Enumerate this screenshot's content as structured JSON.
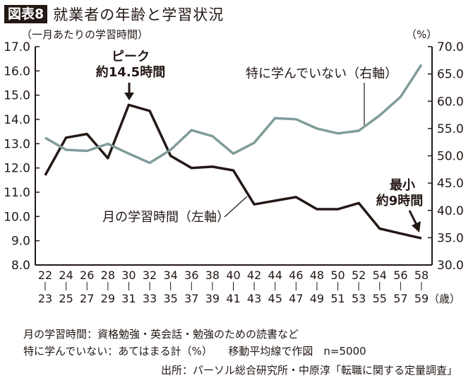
{
  "header": {
    "badge": "図表8",
    "title": "就業者の年齢と学習状況"
  },
  "chart_data": {
    "type": "line",
    "title": "就業者の年齢と学習状況",
    "ylabel_left": "（一月あたりの学習時間）",
    "ylabel_right": "（%）",
    "xunit": "（歳）",
    "categories_top": [
      "22",
      "24",
      "26",
      "28",
      "30",
      "32",
      "34",
      "36",
      "38",
      "40",
      "42",
      "44",
      "46",
      "48",
      "50",
      "52",
      "54",
      "56",
      "58"
    ],
    "categories_bottom": [
      "23",
      "25",
      "27",
      "29",
      "31",
      "33",
      "35",
      "37",
      "39",
      "41",
      "43",
      "45",
      "47",
      "49",
      "51",
      "53",
      "55",
      "57",
      "59"
    ],
    "ylim_left": [
      8,
      17
    ],
    "yticks_left": [
      "17.0",
      "16.0",
      "15.0",
      "14.0",
      "13.0",
      "12.0",
      "11.0",
      "10.0",
      "9.0",
      "8.0"
    ],
    "ylim_right": [
      30,
      70
    ],
    "yticks_right": [
      "70.0",
      "65.0",
      "60.0",
      "55.0",
      "50.0",
      "45.0",
      "40.0",
      "35.0",
      "30.0"
    ],
    "grid": false,
    "series": [
      {
        "name": "月の学習時間（左軸）",
        "axis": "left",
        "color": "#231815",
        "values": [
          11.7,
          13.25,
          13.4,
          12.4,
          14.6,
          14.35,
          12.5,
          12.0,
          12.05,
          11.9,
          10.5,
          10.65,
          10.8,
          10.3,
          10.3,
          10.55,
          9.5,
          9.3,
          9.1
        ]
      },
      {
        "name": "特に学んでいない（右軸）",
        "axis": "right",
        "color": "#7f9c9a",
        "values": [
          53.3,
          51.1,
          50.9,
          52.2,
          50.4,
          48.7,
          51.1,
          54.7,
          53.6,
          50.4,
          52.4,
          56.9,
          56.7,
          55.0,
          54.1,
          54.6,
          57.4,
          60.8,
          66.7
        ]
      }
    ],
    "annotations": {
      "peak_line1": "ピーク",
      "peak_line2": "約14.5時間",
      "min_line1": "最小",
      "min_line2": "約9時間"
    }
  },
  "notes": {
    "line1": "月の学習時間：資格勉強・英会話・勉強のための読書など",
    "line2": "特に学んでいない：あてはまる計（%）　　移動平均線で作図　n=5000",
    "source": "出所：パーソル総合研究所・中原淳「転職に関する定量調査」"
  }
}
